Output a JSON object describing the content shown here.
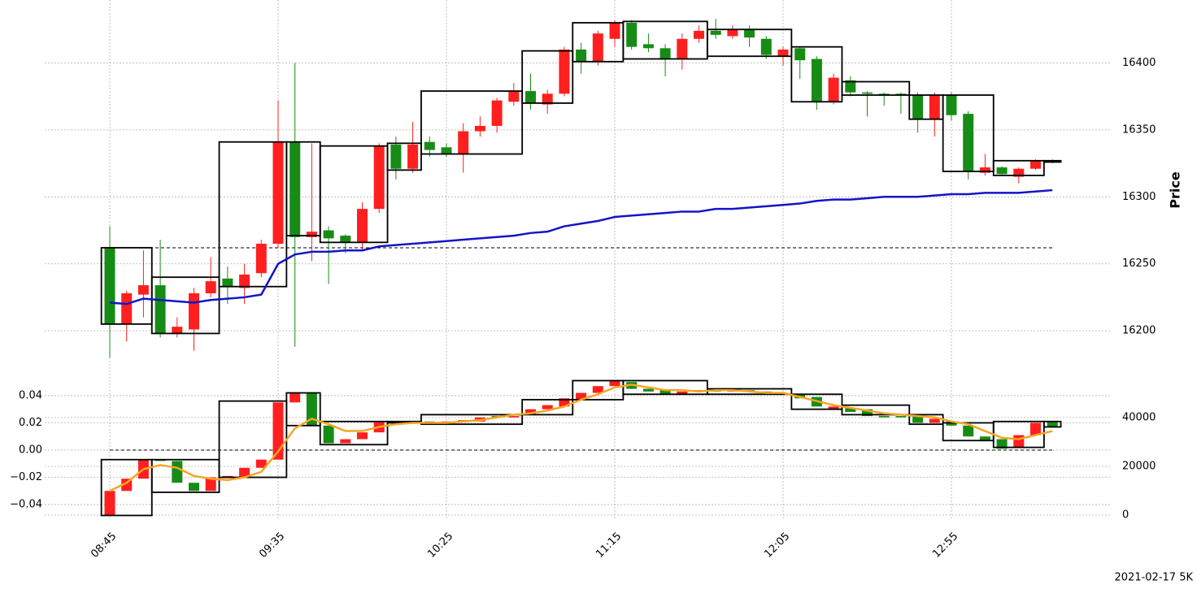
{
  "chart_data": [
    {
      "type": "candlestick",
      "ylabel": "Price",
      "yaxis_position": "right",
      "grid": true,
      "up_color": "#ff1f1f",
      "down_color": "#168c16",
      "open": [
        16262,
        16205,
        16227,
        16234,
        16198,
        16201,
        16228,
        16239,
        16232,
        16243,
        16265,
        16341,
        16270,
        16275,
        16271,
        16266,
        16291,
        16339,
        16321,
        16341,
        16337,
        16332,
        16349,
        16353,
        16371,
        16379,
        16369,
        16377,
        16410,
        16401,
        16418,
        16430,
        16414,
        16411,
        16403,
        16418,
        16424,
        16420,
        16425,
        16418,
        16405,
        16411,
        16403,
        16371,
        16387,
        16378,
        16377,
        16377,
        16376,
        16358,
        16376,
        16362,
        16318,
        16322,
        16315,
        16321,
        16327
      ],
      "high": [
        16278,
        16230,
        16260,
        16268,
        16210,
        16232,
        16255,
        16248,
        16250,
        16268,
        16372,
        16400,
        16340,
        16278,
        16272,
        16296,
        16340,
        16345,
        16356,
        16345,
        16340,
        16355,
        16360,
        16374,
        16385,
        16392,
        16380,
        16412,
        16415,
        16424,
        16432,
        16432,
        16422,
        16414,
        16422,
        16428,
        16433,
        16428,
        16428,
        16420,
        16412,
        16412,
        16405,
        16392,
        16390,
        16379,
        16378,
        16378,
        16378,
        16378,
        16378,
        16364,
        16332,
        16323,
        16322,
        16328,
        16328
      ],
      "low": [
        16180,
        16192,
        16210,
        16195,
        16195,
        16185,
        16225,
        16220,
        16220,
        16240,
        16262,
        16188,
        16252,
        16235,
        16258,
        16260,
        16288,
        16313,
        16318,
        16330,
        16330,
        16318,
        16345,
        16348,
        16368,
        16365,
        16362,
        16375,
        16392,
        16398,
        16412,
        16410,
        16408,
        16390,
        16395,
        16415,
        16418,
        16418,
        16412,
        16403,
        16398,
        16388,
        16365,
        16369,
        16375,
        16360,
        16368,
        16362,
        16348,
        16345,
        16357,
        16313,
        16316,
        16316,
        16310,
        16320,
        16325
      ],
      "close": [
        16205,
        16228,
        16234,
        16198,
        16203,
        16228,
        16237,
        16233,
        16242,
        16265,
        16341,
        16270,
        16274,
        16269,
        16266,
        16291,
        16338,
        16321,
        16339,
        16335,
        16332,
        16349,
        16353,
        16372,
        16379,
        16370,
        16377,
        16410,
        16401,
        16422,
        16430,
        16412,
        16411,
        16403,
        16418,
        16424,
        16421,
        16425,
        16419,
        16406,
        16410,
        16402,
        16371,
        16389,
        16378,
        16377,
        16376,
        16376,
        16358,
        16376,
        16361,
        16319,
        16322,
        16317,
        16321,
        16327,
        16326
      ],
      "boxes": {
        "start": [
          0,
          3,
          7,
          11,
          13,
          17,
          19,
          25,
          28,
          31,
          36,
          41,
          44,
          48,
          50,
          53,
          56
        ],
        "end": [
          2,
          6,
          10,
          12,
          16,
          18,
          24,
          27,
          30,
          35,
          40,
          43,
          47,
          49,
          52,
          55,
          56
        ],
        "high": [
          16262,
          16240,
          16341,
          16341,
          16338,
          16340,
          16379,
          16409,
          16430,
          16431,
          16425,
          16412,
          16386,
          16376,
          16376,
          16327,
          16327
        ],
        "low": [
          16205,
          16198,
          16233,
          16271,
          16266,
          16320,
          16332,
          16370,
          16401,
          16403,
          16405,
          16371,
          16376,
          16358,
          16319,
          16316,
          16326
        ]
      },
      "lines": [
        {
          "color": "#1414c8",
          "values": [
            16221,
            16220,
            16224,
            16223,
            16222,
            16221,
            16223,
            16224,
            16225,
            16227,
            16250,
            16257,
            16259,
            16259,
            16260,
            16260,
            16263,
            16264,
            16265,
            16266,
            16267,
            16268,
            16269,
            16270,
            16271,
            16273,
            16274,
            16278,
            16280,
            16282,
            16285,
            16286,
            16287,
            16288,
            16289,
            16289,
            16291,
            16291,
            16292,
            16293,
            16294,
            16295,
            16297,
            16298,
            16298,
            16299,
            16300,
            16300,
            16300,
            16301,
            16302,
            16302,
            16303,
            16303,
            16303,
            16304,
            16305
          ]
        }
      ],
      "hline": 16262,
      "ylim": [
        16174,
        16447
      ],
      "yticks": [
        16200,
        16250,
        16300,
        16350,
        16400
      ]
    },
    {
      "type": "candlestick",
      "grid": true,
      "up_color": "#ff1f1f",
      "down_color": "#168c16",
      "categories": [
        "08:45",
        null,
        null,
        null,
        null,
        null,
        null,
        null,
        null,
        null,
        "09:35",
        null,
        null,
        null,
        null,
        null,
        null,
        null,
        null,
        null,
        "10:25",
        null,
        null,
        null,
        null,
        null,
        null,
        null,
        null,
        null,
        "11:15",
        null,
        null,
        null,
        null,
        null,
        null,
        null,
        null,
        null,
        "12:05",
        null,
        null,
        null,
        null,
        null,
        null,
        null,
        null,
        null,
        "12:55",
        null,
        null,
        null,
        null,
        null,
        null
      ],
      "open": [
        -0.048,
        -0.03,
        -0.021,
        -0.007,
        -0.008,
        -0.024,
        -0.03,
        -0.02,
        -0.02,
        -0.013,
        -0.007,
        0.035,
        0.042,
        0.018,
        0.005,
        0.008,
        0.013,
        0.021,
        0.02,
        0.021,
        0.02,
        0.021,
        0.021,
        0.025,
        0.024,
        0.026,
        0.03,
        0.032,
        0.037,
        0.042,
        0.047,
        0.05,
        0.045,
        0.044,
        0.041,
        0.043,
        0.044,
        0.043,
        0.044,
        0.043,
        0.042,
        0.041,
        0.039,
        0.03,
        0.031,
        0.03,
        0.025,
        0.025,
        0.025,
        0.02,
        0.021,
        0.018,
        0.01,
        0.008,
        0.002,
        0.011,
        0.021
      ],
      "close": [
        -0.03,
        -0.021,
        -0.007,
        -0.008,
        -0.024,
        -0.03,
        -0.02,
        -0.019,
        -0.013,
        -0.007,
        0.035,
        0.042,
        0.018,
        0.005,
        0.008,
        0.013,
        0.021,
        0.02,
        0.021,
        0.02,
        0.021,
        0.022,
        0.024,
        0.024,
        0.025,
        0.03,
        0.033,
        0.038,
        0.042,
        0.047,
        0.051,
        0.045,
        0.043,
        0.041,
        0.043,
        0.044,
        0.043,
        0.044,
        0.043,
        0.042,
        0.041,
        0.038,
        0.032,
        0.032,
        0.028,
        0.025,
        0.024,
        0.024,
        0.02,
        0.023,
        0.018,
        0.01,
        0.007,
        0.001,
        0.011,
        0.02,
        0.017
      ],
      "boxes": {
        "start": [
          0,
          3,
          7,
          11,
          13,
          17,
          19,
          25,
          28,
          31,
          36,
          41,
          44,
          48,
          50,
          53,
          56
        ],
        "end": [
          2,
          6,
          10,
          12,
          16,
          18,
          24,
          27,
          30,
          35,
          40,
          43,
          47,
          49,
          52,
          55,
          56
        ],
        "high": [
          -0.007,
          -0.007,
          0.036,
          0.042,
          0.021,
          0.021,
          0.026,
          0.037,
          0.051,
          0.051,
          0.045,
          0.041,
          0.033,
          0.026,
          0.02,
          0.021,
          0.021
        ],
        "low": [
          -0.048,
          -0.031,
          -0.02,
          0.018,
          0.004,
          0.02,
          0.019,
          0.026,
          0.037,
          0.041,
          0.041,
          0.03,
          0.026,
          0.019,
          0.007,
          0.002,
          0.017
        ]
      },
      "lines": [
        {
          "color": "#f5a623",
          "values": [
            -0.03,
            -0.024,
            -0.014,
            -0.011,
            -0.013,
            -0.019,
            -0.021,
            -0.022,
            -0.02,
            -0.016,
            -0.001,
            0.016,
            0.023,
            0.019,
            0.014,
            0.014,
            0.017,
            0.019,
            0.02,
            0.02,
            0.02,
            0.021,
            0.022,
            0.024,
            0.026,
            0.027,
            0.029,
            0.032,
            0.037,
            0.041,
            0.046,
            0.048,
            0.046,
            0.044,
            0.044,
            0.043,
            0.044,
            0.044,
            0.043,
            0.042,
            0.042,
            0.039,
            0.036,
            0.033,
            0.031,
            0.029,
            0.027,
            0.026,
            0.025,
            0.024,
            0.021,
            0.019,
            0.014,
            0.009,
            0.008,
            0.011,
            0.014
          ]
        }
      ],
      "hline": 0,
      "ylim": [
        -0.0513,
        0.0525
      ],
      "yticks": [
        {
          "value": -0.04,
          "label": "−0.04"
        },
        {
          "value": -0.02,
          "label": "−0.02"
        },
        {
          "value": 0,
          "label": "0.00"
        },
        0.02,
        0.04
      ],
      "y2lim": [
        -2000,
        56000
      ],
      "y2ticks": [
        0,
        20000,
        40000
      ]
    }
  ],
  "footer": "2021-02-17 5K"
}
